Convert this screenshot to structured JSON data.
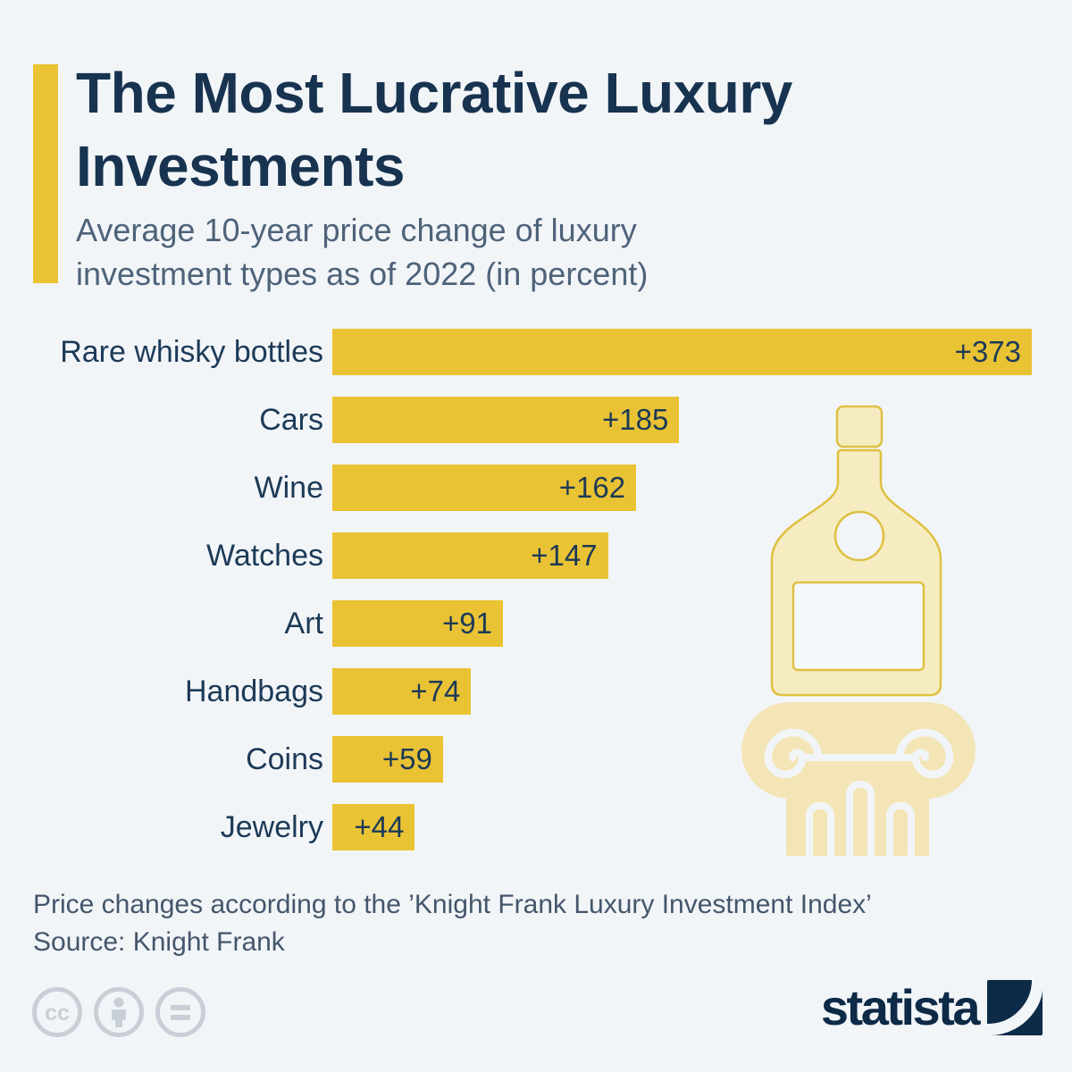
{
  "colors": {
    "bg": "#F2F5F8",
    "accent": "#E9C334",
    "bar": "#E9C334",
    "title": "#17334F",
    "subtitle": "#4E6379",
    "label": "#1C3A57",
    "footnote": "#44566B",
    "brand": "#0D2A47",
    "illustration_fill": "#F6ECC2",
    "illustration_column_fill": "#F3E5B6",
    "illustration_stroke": "#DFC041",
    "license_icon_color": "#C8CFD7"
  },
  "header": {
    "title": "The Most Lucrative Luxury Investments",
    "subtitle": "Average 10-year price change of luxury investment types as of 2022 (in percent)"
  },
  "chart_data": {
    "type": "bar",
    "orientation": "horizontal",
    "title": "The Most Lucrative Luxury Investments",
    "subtitle": "Average 10-year price change of luxury investment types as of 2022 (in percent)",
    "categories": [
      "Rare whisky bottles",
      "Cars",
      "Wine",
      "Watches",
      "Art",
      "Handbags",
      "Coins",
      "Jewelry"
    ],
    "values": [
      373,
      185,
      162,
      147,
      91,
      74,
      59,
      44
    ],
    "value_labels": [
      "+373",
      "+185",
      "+162",
      "+147",
      "+91",
      "+74",
      "+59",
      "+44"
    ],
    "xlim": [
      0,
      373
    ],
    "unit": "percent",
    "grid": false,
    "legend": false,
    "bar_color": "#E9C334"
  },
  "illustration": {
    "alt": "whisky-bottle-on-classical-column-illustration"
  },
  "footer": {
    "note": "Price changes according to the ’Knight Frank Luxury Investment Index’",
    "source": "Source: Knight Frank"
  },
  "license_icons": [
    {
      "name": "cc-icon",
      "glyph": "cc"
    },
    {
      "name": "attribution-icon",
      "glyph": "person"
    },
    {
      "name": "nd-icon",
      "glyph": "equals"
    }
  ],
  "logo": {
    "text": "statista"
  }
}
